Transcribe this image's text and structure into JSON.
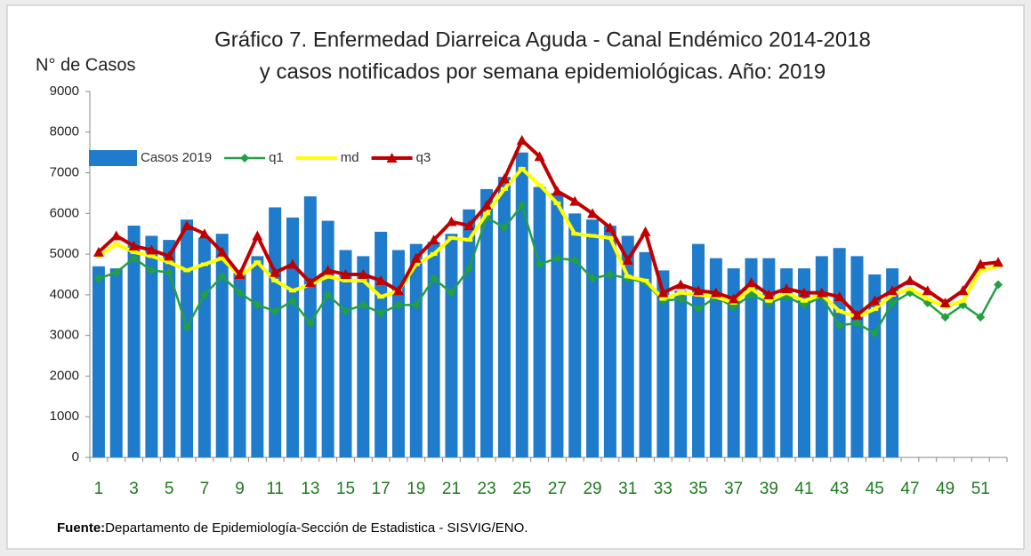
{
  "chart_data": {
    "type": "bar",
    "title": [
      "Gráfico 7. Enfermedad Diarreica Aguda - Canal Endémico 2014-2018",
      "y casos notificados por semana epidemiológicas.  Año: 2019"
    ],
    "y_label": "N° de Casos",
    "source_label": "Fuente:",
    "source": "Departamento de Epidemiología-Sección de Estadistica - SISVIG/ENO.",
    "categories": [
      "1",
      null,
      "3",
      null,
      "5",
      null,
      "7",
      null,
      "9",
      null,
      "11",
      null,
      "13",
      null,
      "15",
      null,
      "17",
      null,
      "19",
      null,
      "21",
      null,
      "23",
      null,
      "25",
      null,
      "27",
      null,
      "29",
      null,
      "31",
      null,
      "33",
      null,
      "35",
      null,
      "37",
      null,
      "39",
      null,
      "41",
      null,
      "43",
      null,
      "45",
      null,
      "47",
      null,
      "49",
      null,
      "51",
      null
    ],
    "ylim": [
      0,
      9000
    ],
    "yticks": [
      0,
      1000,
      2000,
      3000,
      4000,
      5000,
      6000,
      7000,
      8000,
      9000
    ],
    "series": [
      {
        "name": "Casos 2019",
        "type": "bar",
        "color": "#1f7bcb",
        "values": [
          4700,
          4650,
          5700,
          5450,
          5350,
          5850,
          5400,
          5500,
          4550,
          4950,
          6150,
          5900,
          6420,
          5820,
          5100,
          4950,
          5550,
          5100,
          5250,
          5300,
          5500,
          6100,
          6600,
          6900,
          7500,
          6650,
          6500,
          6000,
          5850,
          5700,
          5450,
          5050,
          4600,
          4100,
          5250,
          4900,
          4650,
          4900,
          4900,
          4650,
          4650,
          4950,
          5150,
          4950,
          4500,
          4650,
          null,
          null,
          null,
          null,
          null,
          null
        ]
      },
      {
        "name": "q1",
        "type": "line",
        "marker": "diamond",
        "color": "#22a043",
        "values": [
          4400,
          4550,
          4900,
          4600,
          4550,
          3200,
          4000,
          4450,
          4050,
          3750,
          3600,
          3850,
          3300,
          4000,
          3600,
          3750,
          3550,
          3750,
          3750,
          4400,
          4050,
          4650,
          5900,
          5650,
          6200,
          4750,
          4900,
          4850,
          4400,
          4500,
          4400,
          4300,
          3850,
          3900,
          3650,
          3950,
          3700,
          4000,
          3800,
          3950,
          3750,
          3950,
          3250,
          3300,
          3050,
          3800,
          4050,
          3800,
          3450,
          3750,
          3450,
          4250
        ]
      },
      {
        "name": "md",
        "type": "line",
        "marker": "square",
        "color": "#ffff00",
        "values": [
          4950,
          5250,
          5050,
          4950,
          4800,
          4600,
          4750,
          4900,
          4450,
          4800,
          4350,
          4100,
          4250,
          4450,
          4350,
          4350,
          3950,
          4100,
          4750,
          5000,
          5400,
          5350,
          6000,
          6600,
          7100,
          6700,
          6250,
          5500,
          5450,
          5400,
          4450,
          4350,
          3900,
          4050,
          4000,
          3950,
          3800,
          4150,
          3850,
          4050,
          3850,
          4000,
          3600,
          3450,
          3650,
          4000,
          4150,
          3900,
          3700,
          3850,
          4600,
          4700
        ]
      },
      {
        "name": "q3",
        "type": "line",
        "marker": "triangle",
        "color": "#c00000",
        "values": [
          5050,
          5450,
          5200,
          5100,
          4950,
          5700,
          5500,
          5050,
          4500,
          5450,
          4550,
          4750,
          4300,
          4600,
          4500,
          4500,
          4350,
          4100,
          4900,
          5350,
          5800,
          5700,
          6200,
          6850,
          7800,
          7400,
          6550,
          6300,
          6000,
          5650,
          4850,
          5550,
          4050,
          4250,
          4100,
          4050,
          3900,
          4300,
          4000,
          4150,
          4050,
          4050,
          3950,
          3500,
          3850,
          4100,
          4350,
          4100,
          3800,
          4100,
          4750,
          4800
        ]
      }
    ]
  }
}
